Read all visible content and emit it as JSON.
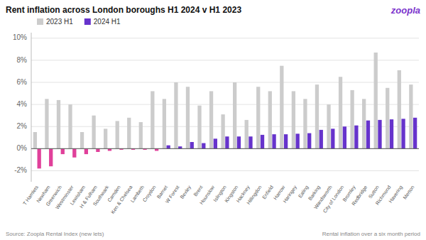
{
  "chart_data": {
    "type": "bar",
    "title": "Rent inflation across London boroughs H1 2024 v H1 2023",
    "annotations": [
      "zoopla",
      "Source: Zoopla Rental Index (new lets)",
      "Rental inflation over a six month period"
    ],
    "categories": [
      "T Hamlets",
      "Newham",
      "Greenwich",
      "Westminster",
      "Lewisham",
      "H & Fulham",
      "Southwark",
      "Camden",
      "Ken & Chelsea",
      "Lambeth",
      "Croydon",
      "Barnet",
      "W Forest",
      "Bexley",
      "Brent",
      "Hounslow",
      "Islington",
      "Kingston",
      "Hackney",
      "Hillingdon",
      "Enfield",
      "Harrow",
      "Haringey",
      "Ealing",
      "Barking",
      "Wandsworth",
      "City of London",
      "Bromley",
      "Redbridge",
      "Sutton",
      "Richmond",
      "Havering",
      "Merton"
    ],
    "series": [
      {
        "name": "2023 H1",
        "color": "#cccccc",
        "values": [
          1.5,
          4.5,
          4.4,
          4.0,
          1.5,
          3.0,
          1.8,
          2.5,
          2.8,
          2.4,
          5.2,
          4.5,
          6.0,
          5.6,
          3.9,
          5.2,
          3.1,
          6.0,
          2.6,
          5.6,
          5.2,
          7.5,
          5.2,
          4.5,
          5.8,
          4.0,
          6.5,
          5.3,
          4.5,
          8.7,
          5.5,
          7.1,
          5.8
        ]
      },
      {
        "name": "2024 H1",
        "color": "#6633cc",
        "colors": [
          "#e0409a",
          "#e0409a",
          "#e0409a",
          "#e0409a",
          "#e0409a",
          "#e0409a",
          "#e0409a",
          "#e0409a",
          "#e0409a",
          "#e0409a",
          "#e0409a",
          "#6633cc",
          "#6633cc",
          "#6633cc",
          "#6633cc",
          "#6633cc",
          "#6633cc",
          "#6633cc",
          "#6633cc",
          "#6633cc",
          "#6633cc",
          "#6633cc",
          "#6633cc",
          "#6633cc",
          "#6633cc",
          "#6633cc",
          "#6633cc",
          "#6633cc",
          "#6633cc",
          "#6633cc",
          "#6633cc",
          "#6633cc",
          "#6633cc"
        ],
        "values": [
          -1.8,
          -1.6,
          -0.5,
          -0.8,
          -0.5,
          -0.3,
          -0.2,
          -0.1,
          -0.1,
          -0.1,
          -0.2,
          0.3,
          0.2,
          0.6,
          0.5,
          0.9,
          1.1,
          1.1,
          1.1,
          1.25,
          1.3,
          1.3,
          1.35,
          1.4,
          1.7,
          1.8,
          2.0,
          2.1,
          2.55,
          2.6,
          2.65,
          2.7,
          2.8
        ]
      }
    ],
    "ylim": [
      -3,
      10.5
    ],
    "yticks": [
      {
        "value": -2,
        "label": "-2%"
      },
      {
        "value": 0,
        "label": "0%"
      },
      {
        "value": 2,
        "label": "2%"
      },
      {
        "value": 4,
        "label": "4%"
      },
      {
        "value": 6,
        "label": "6%"
      },
      {
        "value": 8,
        "label": "8%"
      },
      {
        "value": 10,
        "label": "10%"
      }
    ],
    "grid": true,
    "legend": "upper left"
  }
}
